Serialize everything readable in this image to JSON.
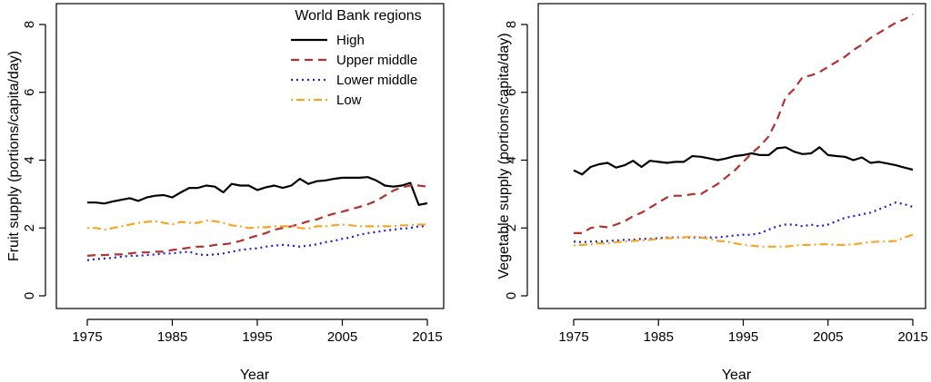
{
  "legend": {
    "title": "World Bank regions",
    "placement": "top-right of left panel",
    "entries": [
      {
        "label": "High",
        "color": "#000000",
        "dash": "solid"
      },
      {
        "label": "Upper middle",
        "color": "#B2322D",
        "dash": "dashed"
      },
      {
        "label": "Lower middle",
        "color": "#2020CC",
        "dash": "dotted"
      },
      {
        "label": "Low",
        "color": "#F5A623",
        "dash": "dotdash"
      }
    ]
  },
  "chart_data": [
    {
      "type": "line",
      "title": "",
      "xlabel": "Year",
      "ylabel": "Fruit supply (portions/capita/day)",
      "xlim": [
        1975,
        2015
      ],
      "ylim": [
        0,
        8
      ],
      "xticks": [
        1975,
        1985,
        1995,
        2005,
        2015
      ],
      "yticks": [
        0,
        2,
        4,
        6,
        8
      ],
      "grid": false,
      "x": [
        1975,
        1976,
        1977,
        1978,
        1979,
        1980,
        1981,
        1982,
        1983,
        1984,
        1985,
        1986,
        1987,
        1988,
        1989,
        1990,
        1991,
        1992,
        1993,
        1994,
        1995,
        1996,
        1997,
        1998,
        1999,
        2000,
        2001,
        2002,
        2003,
        2004,
        2005,
        2006,
        2007,
        2008,
        2009,
        2010,
        2011,
        2012,
        2013,
        2014,
        2015
      ],
      "series": [
        {
          "name": "High",
          "values": [
            2.75,
            2.75,
            2.72,
            2.78,
            2.83,
            2.88,
            2.8,
            2.9,
            2.95,
            2.97,
            2.9,
            3.05,
            3.18,
            3.18,
            3.25,
            3.22,
            3.05,
            3.3,
            3.25,
            3.25,
            3.12,
            3.2,
            3.25,
            3.18,
            3.25,
            3.45,
            3.3,
            3.38,
            3.4,
            3.45,
            3.48,
            3.48,
            3.48,
            3.5,
            3.4,
            3.25,
            3.22,
            3.25,
            3.33,
            2.68,
            2.73
          ]
        },
        {
          "name": "Upper middle",
          "values": [
            1.18,
            1.2,
            1.2,
            1.22,
            1.22,
            1.25,
            1.28,
            1.28,
            1.3,
            1.3,
            1.35,
            1.38,
            1.42,
            1.45,
            1.45,
            1.5,
            1.52,
            1.55,
            1.62,
            1.7,
            1.78,
            1.85,
            1.95,
            2.0,
            2.05,
            2.12,
            2.2,
            2.25,
            2.35,
            2.42,
            2.48,
            2.55,
            2.62,
            2.7,
            2.8,
            2.95,
            3.1,
            3.2,
            3.25,
            3.25,
            3.22
          ]
        },
        {
          "name": "Lower middle",
          "values": [
            1.05,
            1.08,
            1.1,
            1.12,
            1.15,
            1.18,
            1.18,
            1.2,
            1.22,
            1.25,
            1.25,
            1.28,
            1.3,
            1.22,
            1.2,
            1.22,
            1.25,
            1.3,
            1.35,
            1.38,
            1.4,
            1.45,
            1.48,
            1.5,
            1.48,
            1.45,
            1.48,
            1.52,
            1.58,
            1.62,
            1.68,
            1.72,
            1.8,
            1.85,
            1.88,
            1.92,
            1.95,
            1.98,
            2.0,
            2.05,
            2.05
          ]
        },
        {
          "name": "Low",
          "values": [
            2.0,
            2.0,
            1.95,
            2.0,
            2.05,
            2.1,
            2.15,
            2.18,
            2.2,
            2.15,
            2.1,
            2.18,
            2.15,
            2.15,
            2.22,
            2.2,
            2.15,
            2.08,
            2.05,
            2.0,
            2.02,
            2.02,
            2.05,
            2.05,
            2.05,
            2.0,
            1.98,
            2.05,
            2.05,
            2.08,
            2.1,
            2.08,
            2.05,
            2.05,
            2.05,
            2.05,
            2.05,
            2.08,
            2.08,
            2.1,
            2.1
          ]
        }
      ]
    },
    {
      "type": "line",
      "title": "",
      "xlabel": "Year",
      "ylabel": "Vegetable supply (portions/capita/day)",
      "xlim": [
        1975,
        2015
      ],
      "ylim": [
        0,
        8
      ],
      "xticks": [
        1975,
        1985,
        1995,
        2005,
        2015
      ],
      "yticks": [
        0,
        2,
        4,
        6,
        8
      ],
      "grid": false,
      "x": [
        1975,
        1976,
        1977,
        1978,
        1979,
        1980,
        1981,
        1982,
        1983,
        1984,
        1985,
        1986,
        1987,
        1988,
        1989,
        1990,
        1991,
        1992,
        1993,
        1994,
        1995,
        1996,
        1997,
        1998,
        1999,
        2000,
        2001,
        2002,
        2003,
        2004,
        2005,
        2006,
        2007,
        2008,
        2009,
        2010,
        2011,
        2012,
        2013,
        2014,
        2015
      ],
      "series": [
        {
          "name": "High",
          "values": [
            3.7,
            3.58,
            3.8,
            3.88,
            3.92,
            3.78,
            3.85,
            3.98,
            3.8,
            3.98,
            3.95,
            3.92,
            3.95,
            3.95,
            4.12,
            4.1,
            4.05,
            4.0,
            4.05,
            4.12,
            4.15,
            4.2,
            4.15,
            4.15,
            4.35,
            4.38,
            4.25,
            4.18,
            4.2,
            4.38,
            4.15,
            4.12,
            4.1,
            4.0,
            4.08,
            3.92,
            3.95,
            3.9,
            3.85,
            3.78,
            3.72
          ]
        },
        {
          "name": "Upper middle",
          "values": [
            1.85,
            1.85,
            2.0,
            2.05,
            2.02,
            2.1,
            2.2,
            2.35,
            2.45,
            2.6,
            2.75,
            2.9,
            2.95,
            2.95,
            3.0,
            3.0,
            3.15,
            3.3,
            3.5,
            3.7,
            3.95,
            4.2,
            4.42,
            4.7,
            5.2,
            5.85,
            6.1,
            6.45,
            6.5,
            6.6,
            6.75,
            6.9,
            7.05,
            7.25,
            7.4,
            7.6,
            7.75,
            7.9,
            8.05,
            8.15,
            8.3
          ]
        },
        {
          "name": "Lower middle",
          "values": [
            1.6,
            1.58,
            1.6,
            1.6,
            1.62,
            1.63,
            1.65,
            1.65,
            1.68,
            1.68,
            1.7,
            1.72,
            1.72,
            1.72,
            1.72,
            1.72,
            1.72,
            1.72,
            1.75,
            1.78,
            1.8,
            1.8,
            1.85,
            1.95,
            2.05,
            2.1,
            2.1,
            2.05,
            2.1,
            2.05,
            2.1,
            2.2,
            2.3,
            2.35,
            2.4,
            2.45,
            2.55,
            2.65,
            2.75,
            2.7,
            2.62
          ]
        },
        {
          "name": "Low",
          "values": [
            1.48,
            1.5,
            1.52,
            1.55,
            1.55,
            1.58,
            1.6,
            1.62,
            1.63,
            1.65,
            1.68,
            1.7,
            1.7,
            1.72,
            1.75,
            1.72,
            1.68,
            1.62,
            1.6,
            1.55,
            1.5,
            1.48,
            1.45,
            1.45,
            1.45,
            1.45,
            1.48,
            1.5,
            1.5,
            1.52,
            1.52,
            1.5,
            1.5,
            1.52,
            1.55,
            1.58,
            1.6,
            1.6,
            1.62,
            1.72,
            1.8
          ]
        }
      ]
    }
  ]
}
